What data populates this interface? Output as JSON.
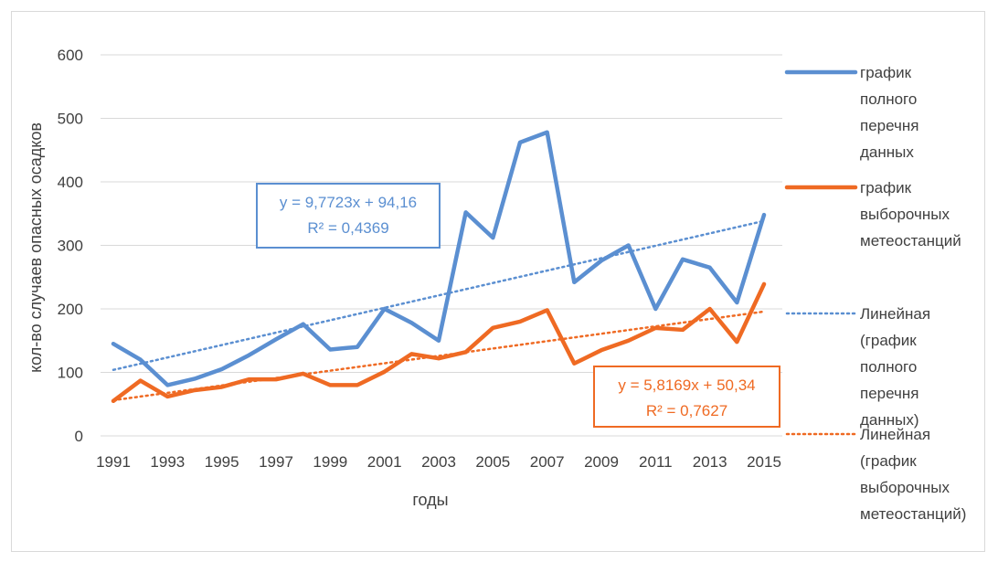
{
  "chart_data": {
    "type": "line",
    "x": [
      1991,
      1992,
      1993,
      1994,
      1995,
      1996,
      1997,
      1998,
      1999,
      2000,
      2001,
      2002,
      2003,
      2004,
      2005,
      2006,
      2007,
      2008,
      2009,
      2010,
      2011,
      2012,
      2013,
      2014,
      2015
    ],
    "x_tick_labels": [
      "1991",
      "1993",
      "1995",
      "1997",
      "1999",
      "2001",
      "2003",
      "2005",
      "2007",
      "2009",
      "2011",
      "2013",
      "2015"
    ],
    "ylim": [
      0,
      600
    ],
    "y_tick_labels": [
      "0",
      "100",
      "200",
      "300",
      "400",
      "500",
      "600"
    ],
    "xlabel": "годы",
    "ylabel": "кол-во случаев опасных осадков",
    "grid": true,
    "legend_position": "right",
    "series": [
      {
        "name": "график полного перечня данных",
        "legend_lines": [
          "график",
          "полного",
          "перечня",
          "данных"
        ],
        "color": "#5b8fd1",
        "style": "solid",
        "values": [
          145,
          120,
          80,
          90,
          105,
          127,
          152,
          176,
          136,
          140,
          200,
          178,
          150,
          352,
          312,
          462,
          478,
          242,
          276,
          300,
          200,
          278,
          265,
          210,
          348
        ]
      },
      {
        "name": "график выборочных метеостанций",
        "legend_lines": [
          "график",
          "выборочных",
          "метеостанций"
        ],
        "color": "#ef6a23",
        "style": "solid",
        "values": [
          55,
          87,
          62,
          72,
          77,
          89,
          89,
          98,
          80,
          80,
          101,
          129,
          122,
          132,
          170,
          180,
          198,
          114,
          135,
          150,
          170,
          167,
          200,
          148,
          239
        ]
      },
      {
        "name": "Линейная (график полного перечня данных)",
        "legend_lines": [
          "Линейная",
          "(график",
          "полного",
          "перечня",
          "данных)"
        ],
        "color": "#5b8fd1",
        "style": "dotted",
        "trend": {
          "slope": 9.7723,
          "intercept": 94.16
        }
      },
      {
        "name": "Линейная (график выборочных метеостанций)",
        "legend_lines": [
          "Линейная",
          "(график",
          "выборочных",
          "метеостанций)"
        ],
        "color": "#ef6a23",
        "style": "dotted",
        "trend": {
          "slope": 5.8169,
          "intercept": 50.34
        }
      }
    ],
    "annotations": [
      {
        "series": 0,
        "equation": "y = 9,7723x + 94,16",
        "r2": "R² = 0,4369",
        "color": "#5b8fd1"
      },
      {
        "series": 1,
        "equation": "y = 5,8169x + 50,34",
        "r2": "R² = 0,7627",
        "color": "#ef6a23"
      }
    ]
  }
}
